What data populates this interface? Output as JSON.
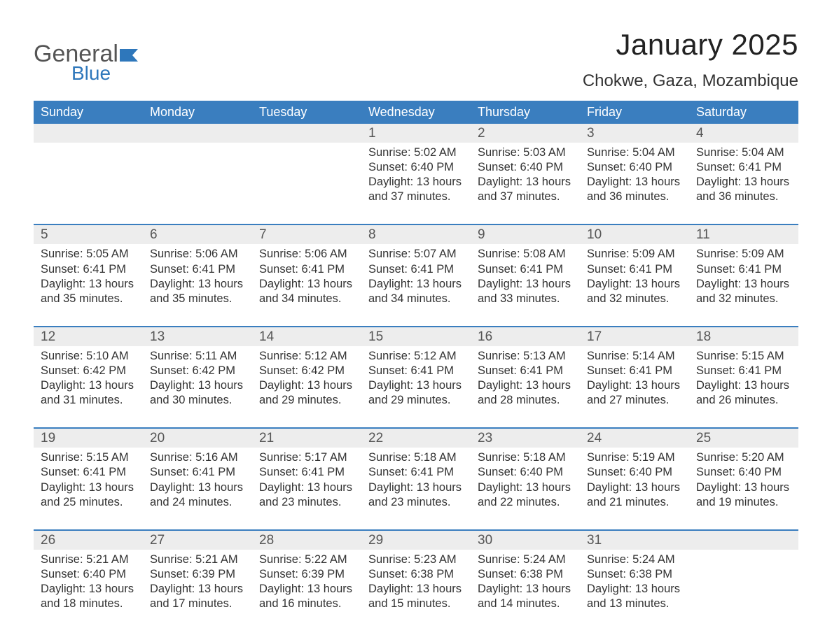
{
  "logo": {
    "general": "General",
    "blue": "Blue",
    "flag_color": "#2e77bb"
  },
  "month_title": "January 2025",
  "location": "Chokwe, Gaza, Mozambique",
  "colors": {
    "header_bg": "#3a7ebf",
    "header_fg": "#ffffff",
    "daynum_bg": "#ededed",
    "text": "#333333",
    "rule": "#3a7ebf",
    "page_bg": "#ffffff"
  },
  "fonts": {
    "month_title_size_pt": 32,
    "location_size_pt": 18,
    "dow_size_pt": 14,
    "daynum_size_pt": 15,
    "body_size_pt": 12.5
  },
  "day_of_week_labels": [
    "Sunday",
    "Monday",
    "Tuesday",
    "Wednesday",
    "Thursday",
    "Friday",
    "Saturday"
  ],
  "weeks": [
    [
      null,
      null,
      null,
      {
        "day": "1",
        "sunrise": "Sunrise: 5:02 AM",
        "sunset": "Sunset: 6:40 PM",
        "daylight": "Daylight: 13 hours and 37 minutes."
      },
      {
        "day": "2",
        "sunrise": "Sunrise: 5:03 AM",
        "sunset": "Sunset: 6:40 PM",
        "daylight": "Daylight: 13 hours and 37 minutes."
      },
      {
        "day": "3",
        "sunrise": "Sunrise: 5:04 AM",
        "sunset": "Sunset: 6:40 PM",
        "daylight": "Daylight: 13 hours and 36 minutes."
      },
      {
        "day": "4",
        "sunrise": "Sunrise: 5:04 AM",
        "sunset": "Sunset: 6:41 PM",
        "daylight": "Daylight: 13 hours and 36 minutes."
      }
    ],
    [
      {
        "day": "5",
        "sunrise": "Sunrise: 5:05 AM",
        "sunset": "Sunset: 6:41 PM",
        "daylight": "Daylight: 13 hours and 35 minutes."
      },
      {
        "day": "6",
        "sunrise": "Sunrise: 5:06 AM",
        "sunset": "Sunset: 6:41 PM",
        "daylight": "Daylight: 13 hours and 35 minutes."
      },
      {
        "day": "7",
        "sunrise": "Sunrise: 5:06 AM",
        "sunset": "Sunset: 6:41 PM",
        "daylight": "Daylight: 13 hours and 34 minutes."
      },
      {
        "day": "8",
        "sunrise": "Sunrise: 5:07 AM",
        "sunset": "Sunset: 6:41 PM",
        "daylight": "Daylight: 13 hours and 34 minutes."
      },
      {
        "day": "9",
        "sunrise": "Sunrise: 5:08 AM",
        "sunset": "Sunset: 6:41 PM",
        "daylight": "Daylight: 13 hours and 33 minutes."
      },
      {
        "day": "10",
        "sunrise": "Sunrise: 5:09 AM",
        "sunset": "Sunset: 6:41 PM",
        "daylight": "Daylight: 13 hours and 32 minutes."
      },
      {
        "day": "11",
        "sunrise": "Sunrise: 5:09 AM",
        "sunset": "Sunset: 6:41 PM",
        "daylight": "Daylight: 13 hours and 32 minutes."
      }
    ],
    [
      {
        "day": "12",
        "sunrise": "Sunrise: 5:10 AM",
        "sunset": "Sunset: 6:42 PM",
        "daylight": "Daylight: 13 hours and 31 minutes."
      },
      {
        "day": "13",
        "sunrise": "Sunrise: 5:11 AM",
        "sunset": "Sunset: 6:42 PM",
        "daylight": "Daylight: 13 hours and 30 minutes."
      },
      {
        "day": "14",
        "sunrise": "Sunrise: 5:12 AM",
        "sunset": "Sunset: 6:42 PM",
        "daylight": "Daylight: 13 hours and 29 minutes."
      },
      {
        "day": "15",
        "sunrise": "Sunrise: 5:12 AM",
        "sunset": "Sunset: 6:41 PM",
        "daylight": "Daylight: 13 hours and 29 minutes."
      },
      {
        "day": "16",
        "sunrise": "Sunrise: 5:13 AM",
        "sunset": "Sunset: 6:41 PM",
        "daylight": "Daylight: 13 hours and 28 minutes."
      },
      {
        "day": "17",
        "sunrise": "Sunrise: 5:14 AM",
        "sunset": "Sunset: 6:41 PM",
        "daylight": "Daylight: 13 hours and 27 minutes."
      },
      {
        "day": "18",
        "sunrise": "Sunrise: 5:15 AM",
        "sunset": "Sunset: 6:41 PM",
        "daylight": "Daylight: 13 hours and 26 minutes."
      }
    ],
    [
      {
        "day": "19",
        "sunrise": "Sunrise: 5:15 AM",
        "sunset": "Sunset: 6:41 PM",
        "daylight": "Daylight: 13 hours and 25 minutes."
      },
      {
        "day": "20",
        "sunrise": "Sunrise: 5:16 AM",
        "sunset": "Sunset: 6:41 PM",
        "daylight": "Daylight: 13 hours and 24 minutes."
      },
      {
        "day": "21",
        "sunrise": "Sunrise: 5:17 AM",
        "sunset": "Sunset: 6:41 PM",
        "daylight": "Daylight: 13 hours and 23 minutes."
      },
      {
        "day": "22",
        "sunrise": "Sunrise: 5:18 AM",
        "sunset": "Sunset: 6:41 PM",
        "daylight": "Daylight: 13 hours and 23 minutes."
      },
      {
        "day": "23",
        "sunrise": "Sunrise: 5:18 AM",
        "sunset": "Sunset: 6:40 PM",
        "daylight": "Daylight: 13 hours and 22 minutes."
      },
      {
        "day": "24",
        "sunrise": "Sunrise: 5:19 AM",
        "sunset": "Sunset: 6:40 PM",
        "daylight": "Daylight: 13 hours and 21 minutes."
      },
      {
        "day": "25",
        "sunrise": "Sunrise: 5:20 AM",
        "sunset": "Sunset: 6:40 PM",
        "daylight": "Daylight: 13 hours and 19 minutes."
      }
    ],
    [
      {
        "day": "26",
        "sunrise": "Sunrise: 5:21 AM",
        "sunset": "Sunset: 6:40 PM",
        "daylight": "Daylight: 13 hours and 18 minutes."
      },
      {
        "day": "27",
        "sunrise": "Sunrise: 5:21 AM",
        "sunset": "Sunset: 6:39 PM",
        "daylight": "Daylight: 13 hours and 17 minutes."
      },
      {
        "day": "28",
        "sunrise": "Sunrise: 5:22 AM",
        "sunset": "Sunset: 6:39 PM",
        "daylight": "Daylight: 13 hours and 16 minutes."
      },
      {
        "day": "29",
        "sunrise": "Sunrise: 5:23 AM",
        "sunset": "Sunset: 6:38 PM",
        "daylight": "Daylight: 13 hours and 15 minutes."
      },
      {
        "day": "30",
        "sunrise": "Sunrise: 5:24 AM",
        "sunset": "Sunset: 6:38 PM",
        "daylight": "Daylight: 13 hours and 14 minutes."
      },
      {
        "day": "31",
        "sunrise": "Sunrise: 5:24 AM",
        "sunset": "Sunset: 6:38 PM",
        "daylight": "Daylight: 13 hours and 13 minutes."
      },
      null
    ]
  ]
}
